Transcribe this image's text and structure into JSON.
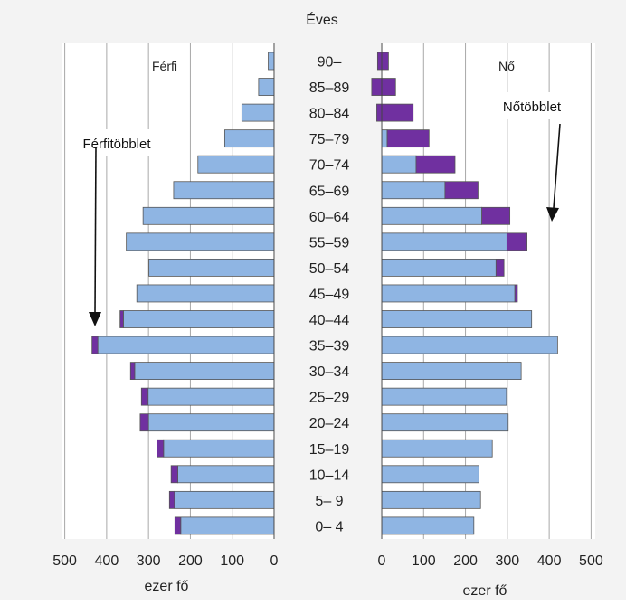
{
  "chart_data": {
    "type": "bar",
    "title": "Éves",
    "left_panel_label": "Férfi",
    "right_panel_label": "Nő",
    "xlabel": "ezer fő",
    "male_xlim": [
      500,
      0
    ],
    "female_xlim": [
      0,
      500
    ],
    "male_ticks": [
      "500",
      "400",
      "300",
      "200",
      "100",
      "0"
    ],
    "female_ticks": [
      "0",
      "100",
      "200",
      "300",
      "400",
      "500"
    ],
    "grid": true,
    "categories": [
      "90–",
      "85–89",
      "80–84",
      "75–79",
      "70–74",
      "65–69",
      "60–64",
      "55–59",
      "50–54",
      "45–49",
      "40–44",
      "35–39",
      "30–34",
      "25–29",
      "20–24",
      "15–19",
      "10–14",
      "5– 9",
      "0– 4"
    ],
    "series": [
      {
        "values": [
          14,
          37,
          77,
          118,
          182,
          240,
          313,
          353,
          299,
          328,
          368,
          435,
          343,
          317,
          320,
          280,
          246,
          250,
          237
        ]
      },
      {
        "values": [
          0,
          0,
          0,
          0,
          0,
          0,
          0,
          0,
          0,
          0,
          8,
          14,
          10,
          16,
          20,
          16,
          16,
          12,
          14
        ]
      },
      {
        "values": [
          16,
          33,
          75,
          113,
          175,
          230,
          306,
          347,
          292,
          324,
          358,
          420,
          333,
          298,
          302,
          264,
          232,
          236,
          220
        ]
      },
      {
        "values": [
          26,
          57,
          87,
          100,
          93,
          79,
          67,
          48,
          19,
          6,
          0,
          0,
          0,
          0,
          0,
          0,
          0,
          0,
          0
        ]
      }
    ],
    "annotations": [
      "Férfitöbblet",
      "Nőtöbblet"
    ],
    "colors": {
      "base": "#8fb5e3",
      "surplus": "#7030a0",
      "bar_outline": "#555555",
      "background": "#f3f3f3",
      "gridline": "#a8a8a8",
      "axis": "#444444"
    }
  }
}
